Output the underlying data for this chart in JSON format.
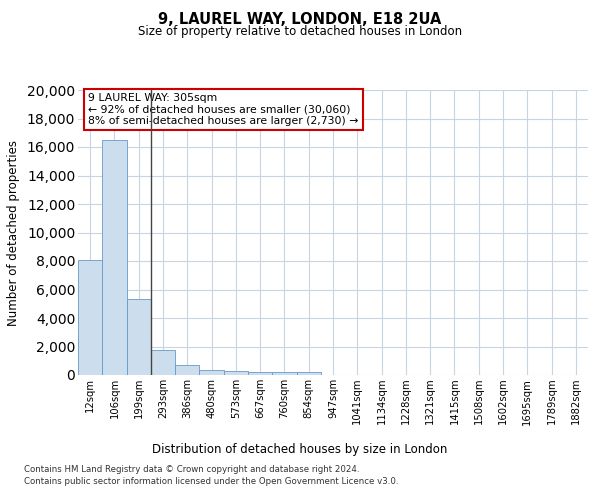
{
  "title1": "9, LAUREL WAY, LONDON, E18 2UA",
  "title2": "Size of property relative to detached houses in London",
  "xlabel": "Distribution of detached houses by size in London",
  "ylabel": "Number of detached properties",
  "footer1": "Contains HM Land Registry data © Crown copyright and database right 2024.",
  "footer2": "Contains public sector information licensed under the Open Government Licence v3.0.",
  "annotation_line1": "9 LAUREL WAY: 305sqm",
  "annotation_line2": "← 92% of detached houses are smaller (30,060)",
  "annotation_line3": "8% of semi-detached houses are larger (2,730) →",
  "bar_categories": [
    "12sqm",
    "106sqm",
    "199sqm",
    "293sqm",
    "386sqm",
    "480sqm",
    "573sqm",
    "667sqm",
    "760sqm",
    "854sqm",
    "947sqm",
    "1041sqm",
    "1134sqm",
    "1228sqm",
    "1321sqm",
    "1415sqm",
    "1508sqm",
    "1602sqm",
    "1695sqm",
    "1789sqm",
    "1882sqm"
  ],
  "bar_values": [
    8100,
    16500,
    5300,
    1750,
    700,
    350,
    270,
    200,
    200,
    180,
    0,
    0,
    0,
    0,
    0,
    0,
    0,
    0,
    0,
    0,
    0
  ],
  "bar_color": "#ccdded",
  "bar_edge_color": "#6699cc",
  "property_line_x": 2.5,
  "ylim": [
    0,
    20000
  ],
  "yticks": [
    0,
    2000,
    4000,
    6000,
    8000,
    10000,
    12000,
    14000,
    16000,
    18000,
    20000
  ],
  "annotation_box_color": "#ffffff",
  "annotation_border_color": "#cc0000",
  "background_color": "#ffffff",
  "grid_color": "#c8d4e0"
}
